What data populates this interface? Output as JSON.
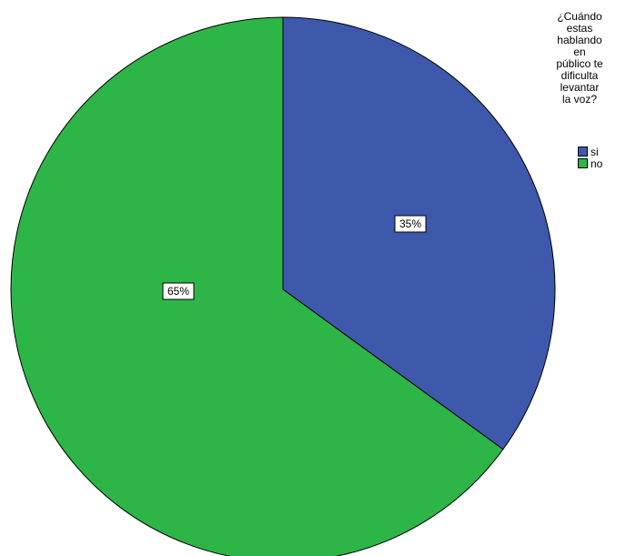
{
  "chart_data": {
    "type": "pie",
    "title": "",
    "legend_title": "¿Cuándo\nestas\nhablando\nen\npúblico te\ndificulta\nlevantar\nla voz?",
    "legend_position": "top-right",
    "slices": [
      {
        "label": "si",
        "value": 35,
        "display": "35%",
        "color": "#3e58ac"
      },
      {
        "label": "no",
        "value": 65,
        "display": "65%",
        "color": "#2eb548"
      }
    ]
  }
}
